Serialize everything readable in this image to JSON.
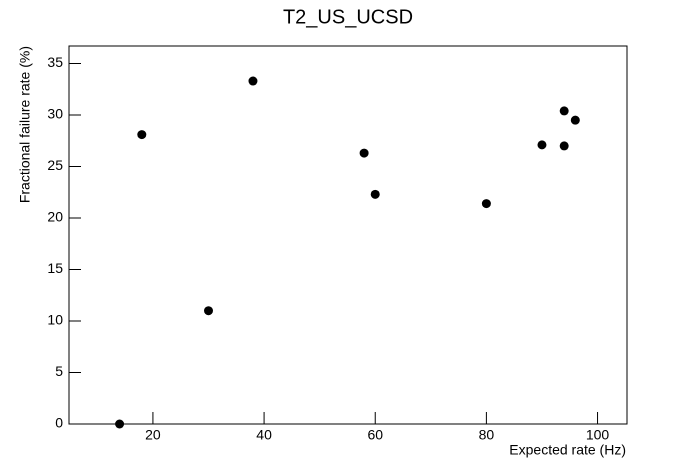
{
  "chart_data": {
    "type": "scatter",
    "title": "T2_US_UCSD",
    "x_label": "Expected rate (Hz)",
    "y_label": "Fractional failure rate (%)",
    "x": [
      14,
      18,
      30,
      38,
      58,
      60,
      80,
      90,
      94,
      94,
      96
    ],
    "values": [
      0,
      28.1,
      11.0,
      33.3,
      26.3,
      22.3,
      21.4,
      27.1,
      27.0,
      30.4,
      29.5
    ],
    "color": "#000000",
    "xlim": [
      4.9,
      105.3
    ],
    "xticks": [
      20,
      40,
      60,
      80,
      100
    ],
    "ylim": [
      0,
      36.7
    ],
    "yticks": [
      0,
      5,
      10,
      15,
      20,
      25,
      30,
      35
    ],
    "grid": false
  }
}
